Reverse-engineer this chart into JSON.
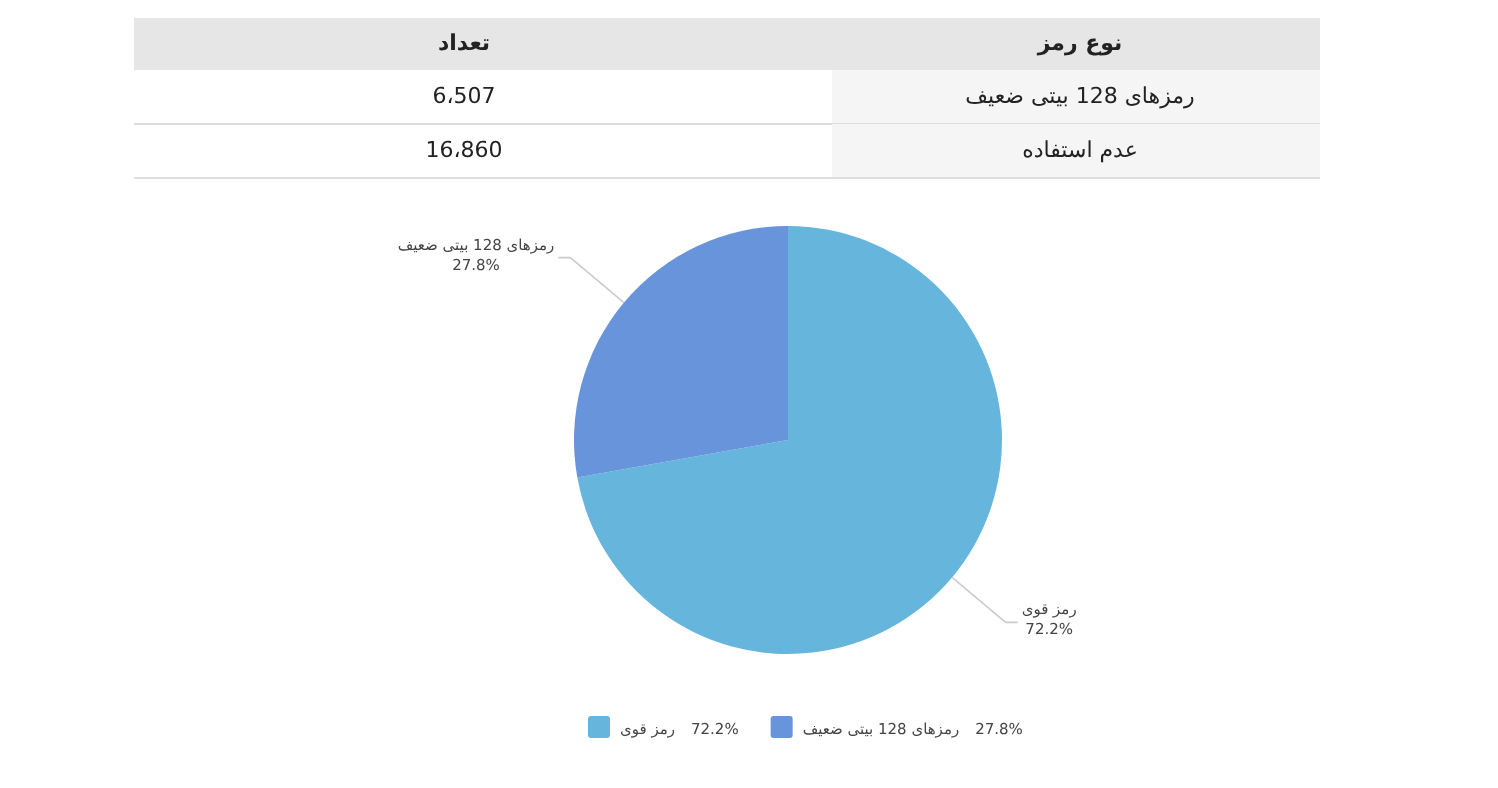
{
  "chart_data": {
    "type": "pie",
    "categories": [
      "رمز قوی",
      "رمزهای 128 بیتی ضعیف"
    ],
    "values": [
      72.2,
      27.8
    ],
    "value_labels": [
      "72.2%",
      "27.8%"
    ],
    "colors": [
      "#65b5dc",
      "#6894dc"
    ],
    "legend": "bottom",
    "annotations": [
      "نوع رمز",
      "تعداد",
      "رمزهای 128 بیتی ضعیف",
      "6،507",
      "عدم استفاده",
      "16،860"
    ]
  }
}
